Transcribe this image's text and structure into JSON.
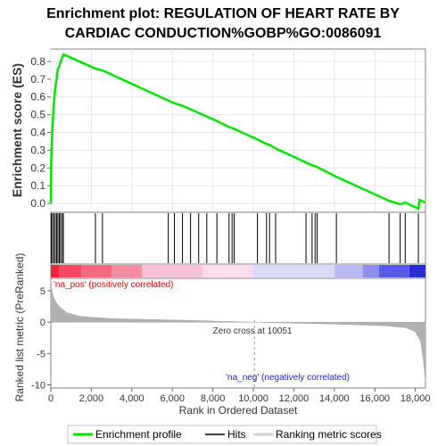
{
  "chart_data": {
    "type": "line",
    "title_line1": "Enrichment plot: REGULATION OF HEART RATE BY",
    "title_line2": "CARDIAC CONDUCTION%GOBP%GO:0086091",
    "xlabel": "Rank in Ordered Dataset",
    "es_ylabel": "Enrichment score (ES)",
    "metric_ylabel": "Ranked list metric (PreRanked)",
    "xlim": [
      0,
      18500
    ],
    "es_ylim": [
      -0.05,
      0.87
    ],
    "metric_ylim": [
      -10.5,
      7
    ],
    "x_ticks": [
      0,
      2000,
      4000,
      6000,
      8000,
      10000,
      12000,
      14000,
      16000,
      18000
    ],
    "x_tick_labels": [
      "0",
      "2,000",
      "4,000",
      "6,000",
      "8,000",
      "10,000",
      "12,000",
      "14,000",
      "16,000",
      "18,000"
    ],
    "es_ticks": [
      0.0,
      0.1,
      0.2,
      0.3,
      0.4,
      0.5,
      0.6,
      0.7,
      0.8
    ],
    "es_tick_labels": [
      "0.0",
      "0.1",
      "0.2",
      "0.3",
      "0.4",
      "0.5",
      "0.6",
      "0.7",
      "0.8"
    ],
    "metric_ticks": [
      5,
      0,
      -5,
      -10
    ],
    "metric_tick_labels": [
      "5",
      "0",
      "-5",
      "-10"
    ],
    "hits": [
      20,
      80,
      150,
      220,
      290,
      350,
      420,
      480,
      560,
      620,
      2200,
      2550,
      5800,
      6100,
      6500,
      6900,
      7300,
      7700,
      8200,
      8800,
      8950,
      9050,
      10200,
      10650,
      10800,
      11100,
      12600,
      12900,
      13050,
      13150,
      14100,
      16700,
      17250,
      17500,
      18150
    ],
    "es_curve": [
      {
        "x": 0,
        "y": 0.0
      },
      {
        "x": 20,
        "y": 0.26
      },
      {
        "x": 80,
        "y": 0.43
      },
      {
        "x": 150,
        "y": 0.57
      },
      {
        "x": 220,
        "y": 0.65
      },
      {
        "x": 290,
        "y": 0.71
      },
      {
        "x": 350,
        "y": 0.76
      },
      {
        "x": 420,
        "y": 0.77
      },
      {
        "x": 480,
        "y": 0.8
      },
      {
        "x": 560,
        "y": 0.82
      },
      {
        "x": 620,
        "y": 0.84
      },
      {
        "x": 2200,
        "y": 0.76
      },
      {
        "x": 2550,
        "y": 0.75
      },
      {
        "x": 5800,
        "y": 0.58
      },
      {
        "x": 6100,
        "y": 0.565
      },
      {
        "x": 6500,
        "y": 0.55
      },
      {
        "x": 6900,
        "y": 0.53
      },
      {
        "x": 7300,
        "y": 0.51
      },
      {
        "x": 7700,
        "y": 0.49
      },
      {
        "x": 8200,
        "y": 0.465
      },
      {
        "x": 8800,
        "y": 0.43
      },
      {
        "x": 8950,
        "y": 0.425
      },
      {
        "x": 9050,
        "y": 0.42
      },
      {
        "x": 10200,
        "y": 0.36
      },
      {
        "x": 10650,
        "y": 0.335
      },
      {
        "x": 10800,
        "y": 0.33
      },
      {
        "x": 11100,
        "y": 0.31
      },
      {
        "x": 12600,
        "y": 0.23
      },
      {
        "x": 12900,
        "y": 0.215
      },
      {
        "x": 13050,
        "y": 0.21
      },
      {
        "x": 13150,
        "y": 0.205
      },
      {
        "x": 14100,
        "y": 0.15
      },
      {
        "x": 16700,
        "y": 0.015
      },
      {
        "x": 17250,
        "y": -0.005
      },
      {
        "x": 17500,
        "y": 0.005
      },
      {
        "x": 18150,
        "y": -0.03
      },
      {
        "x": 18200,
        "y": 0.02
      },
      {
        "x": 18500,
        "y": 0.005
      }
    ],
    "metric_profile": [
      {
        "x": 0,
        "y": 7.0
      },
      {
        "x": 50,
        "y": 5.0
      },
      {
        "x": 150,
        "y": 3.8
      },
      {
        "x": 400,
        "y": 2.5
      },
      {
        "x": 800,
        "y": 1.5
      },
      {
        "x": 1500,
        "y": 0.9
      },
      {
        "x": 3000,
        "y": 0.55
      },
      {
        "x": 6000,
        "y": 0.35
      },
      {
        "x": 10051,
        "y": 0.0
      },
      {
        "x": 14000,
        "y": -0.3
      },
      {
        "x": 16500,
        "y": -0.55
      },
      {
        "x": 17500,
        "y": -0.85
      },
      {
        "x": 18000,
        "y": -1.5
      },
      {
        "x": 18250,
        "y": -3.0
      },
      {
        "x": 18400,
        "y": -6.0
      },
      {
        "x": 18500,
        "y": -9.5
      }
    ],
    "heat_segments": [
      {
        "x0": 0,
        "x1": 400,
        "color": "#f2243a"
      },
      {
        "x0": 400,
        "x1": 1500,
        "color": "#f34860"
      },
      {
        "x0": 1500,
        "x1": 3000,
        "color": "#f4677e"
      },
      {
        "x0": 3000,
        "x1": 4500,
        "color": "#f58c9f"
      },
      {
        "x0": 4500,
        "x1": 7500,
        "color": "#f8c3d8"
      },
      {
        "x0": 7500,
        "x1": 10000,
        "color": "#fbdcec"
      },
      {
        "x0": 10000,
        "x1": 14000,
        "color": "#d9d9f8"
      },
      {
        "x0": 14000,
        "x1": 15400,
        "color": "#b8b8f4"
      },
      {
        "x0": 15400,
        "x1": 16200,
        "color": "#8e8ef0"
      },
      {
        "x0": 16200,
        "x1": 17700,
        "color": "#5a5ae8"
      },
      {
        "x0": 17700,
        "x1": 18500,
        "color": "#2b2bd8"
      }
    ],
    "zero_cross_x": 10051,
    "zero_cross_label": "Zero cross at 10051",
    "pos_label": "'na_pos' (positively correlated)",
    "neg_label": "'na_neg' (negatively correlated)",
    "legend": {
      "placement": "bottom",
      "entries": [
        "Enrichment profile",
        "Hits",
        "Ranking metric scores"
      ]
    },
    "colors": {
      "es_line": "#00e400",
      "hits": "#000000",
      "metric_fill": "#b0b0b0",
      "pos_label": "#e00000",
      "neg_label": "#2020d0",
      "zero_line": "#909090"
    }
  }
}
